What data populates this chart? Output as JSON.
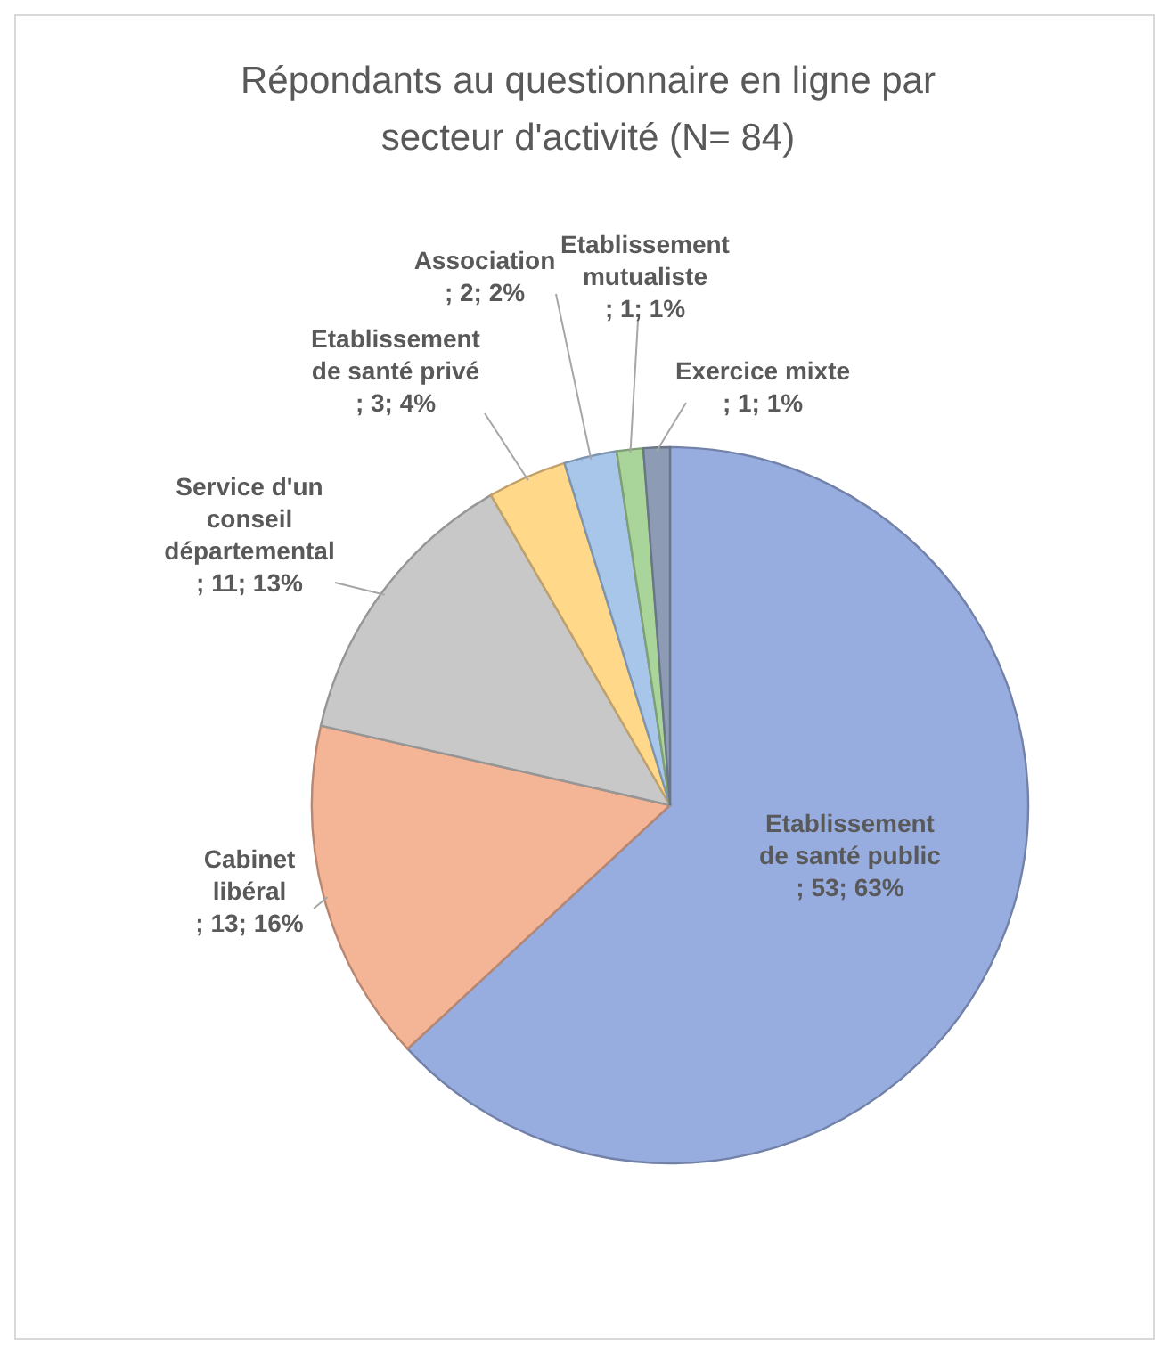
{
  "chart_data": {
    "type": "pie",
    "title": "Répondants au questionnaire en ligne par secteur d'activité (N= 84)",
    "categories": [
      "Etablissement de santé public",
      "Cabinet libéral",
      "Service d'un conseil départemental",
      "Etablissement de santé privé",
      "Association",
      "Etablissement mutualiste",
      "Exercice mixte"
    ],
    "values": [
      53,
      13,
      11,
      3,
      2,
      1,
      1
    ],
    "colors": [
      "#97acdf",
      "#f4b496",
      "#c8c8c8",
      "#ffd88a",
      "#a8c6ea",
      "#a9d49a",
      "#8d9bb5"
    ],
    "value_labels": [
      "; 53; 63%",
      "; 13; 16%",
      "; 11; 13%",
      "; 3; 4%",
      "; 2; 2%",
      "; 1; 1%",
      "; 1; 1%"
    ]
  }
}
